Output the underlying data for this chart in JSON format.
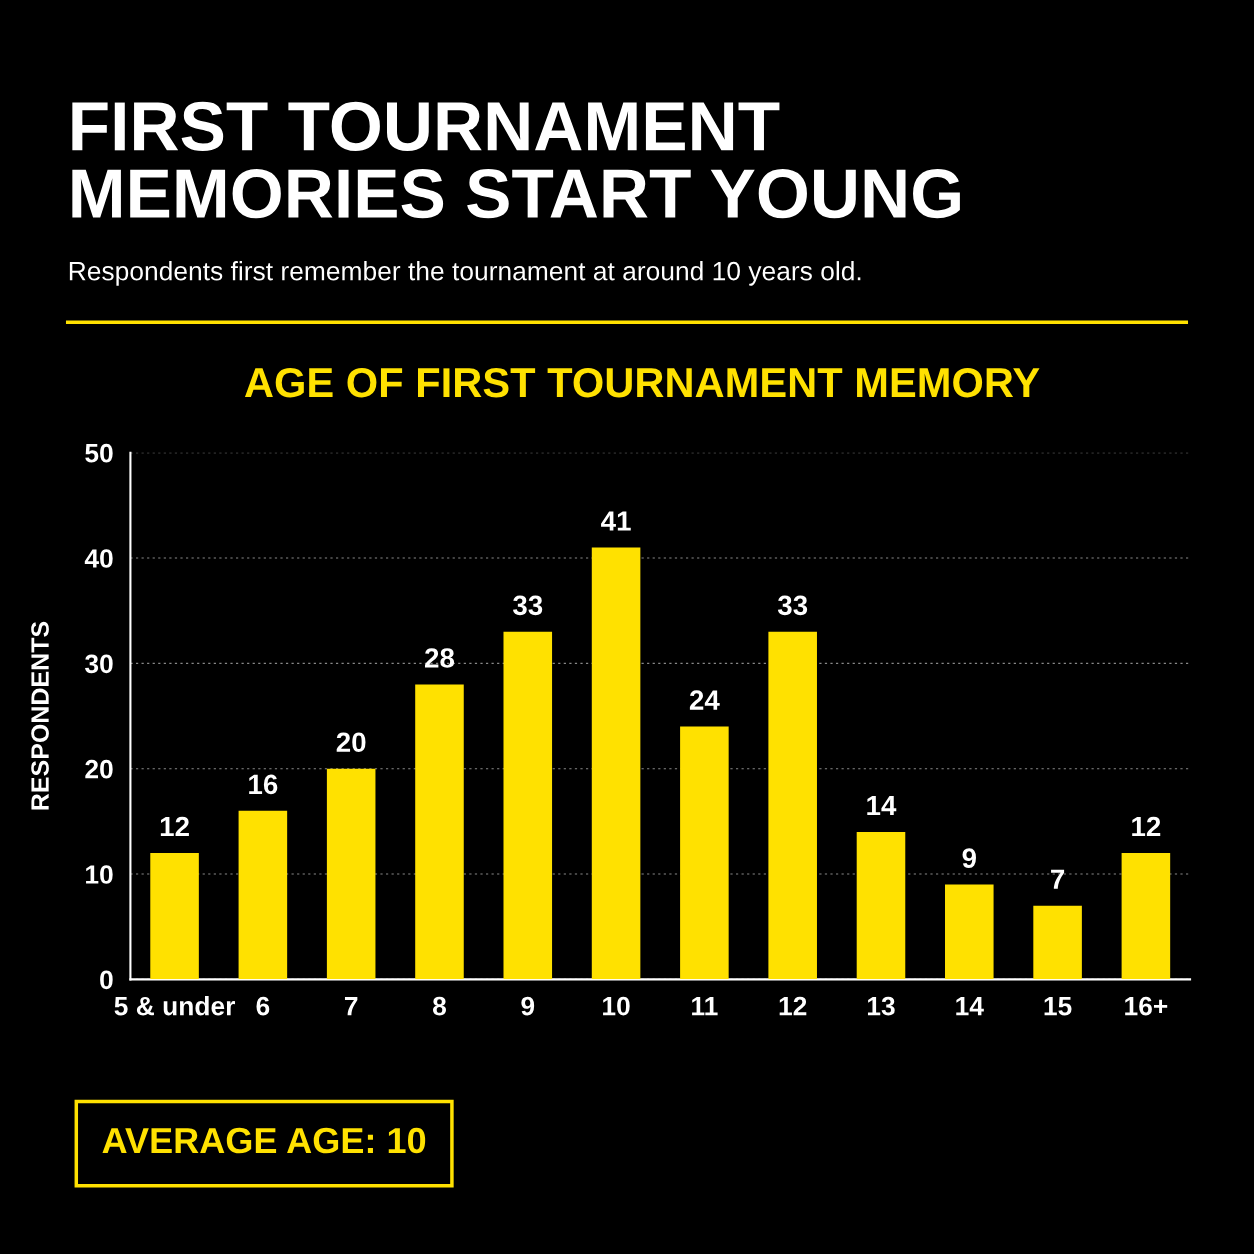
{
  "chart_data": {
    "type": "bar",
    "title": "FIRST TOURNAMENT\nMEMORIES START YOUNG",
    "subtitle": "Respondents first remember the tournament at around 10 years old.",
    "ylabel": "RESPONDENTS",
    "categories": [
      "5 & under",
      "6",
      "7",
      "8",
      "9",
      "10",
      "11",
      "12",
      "13",
      "14",
      "15",
      "16+"
    ],
    "values": [
      12,
      16,
      20,
      28,
      33,
      41,
      24,
      33,
      14,
      9,
      7,
      12
    ],
    "color": "#ffe100",
    "ylim": [
      0,
      50
    ],
    "yticks": [
      0,
      10,
      20,
      30,
      40,
      50
    ],
    "grid": "y",
    "data_labels": true,
    "annotations": [
      "AGE OF FIRST TOURNAMENT MEMORY",
      "AVERAGE AGE: 10"
    ]
  }
}
